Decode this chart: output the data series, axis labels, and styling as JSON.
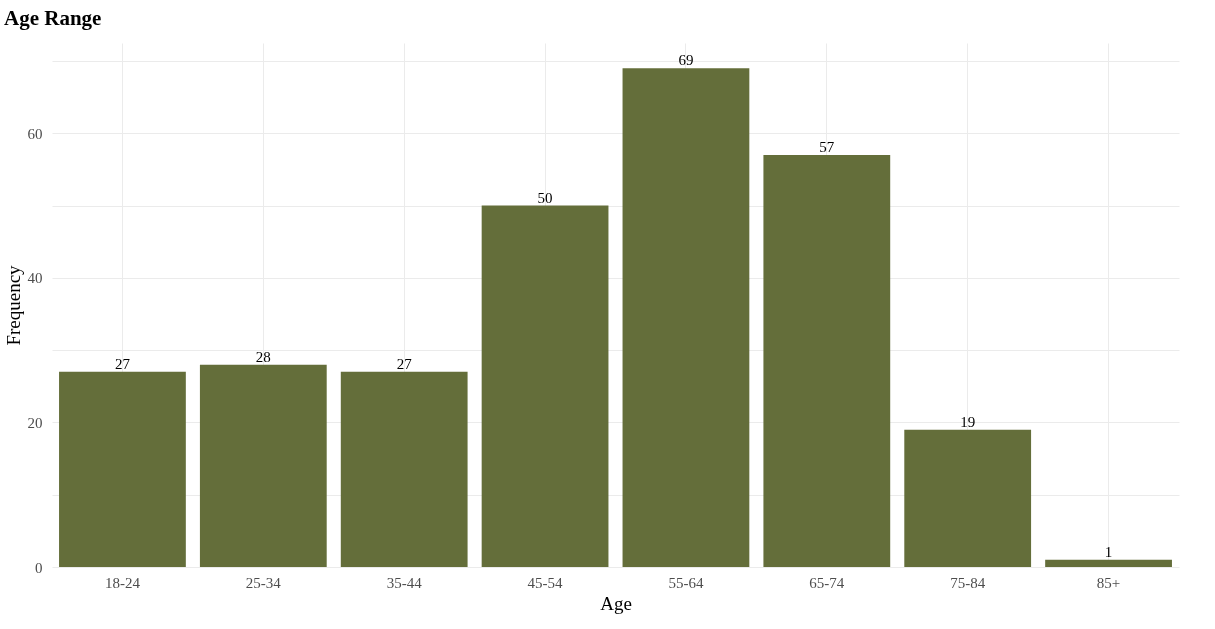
{
  "chart_data": {
    "type": "bar",
    "title": "Age Range",
    "xlabel": "Age",
    "ylabel": "Frequency",
    "categories": [
      "18-24",
      "25-34",
      "35-44",
      "45-54",
      "55-64",
      "65-74",
      "75-84",
      "85+"
    ],
    "values": [
      27,
      28,
      27,
      50,
      69,
      57,
      19,
      1
    ],
    "color": "#646e3a",
    "ylim": [
      0,
      72.5
    ],
    "yticks": [
      0,
      {
        "value": 10,
        "label": null
      },
      20,
      {
        "value": 30,
        "label": null
      },
      40,
      {
        "value": 50,
        "label": null
      },
      60,
      {
        "value": 70,
        "label": null
      }
    ],
    "grid": true,
    "data_labels": true
  }
}
